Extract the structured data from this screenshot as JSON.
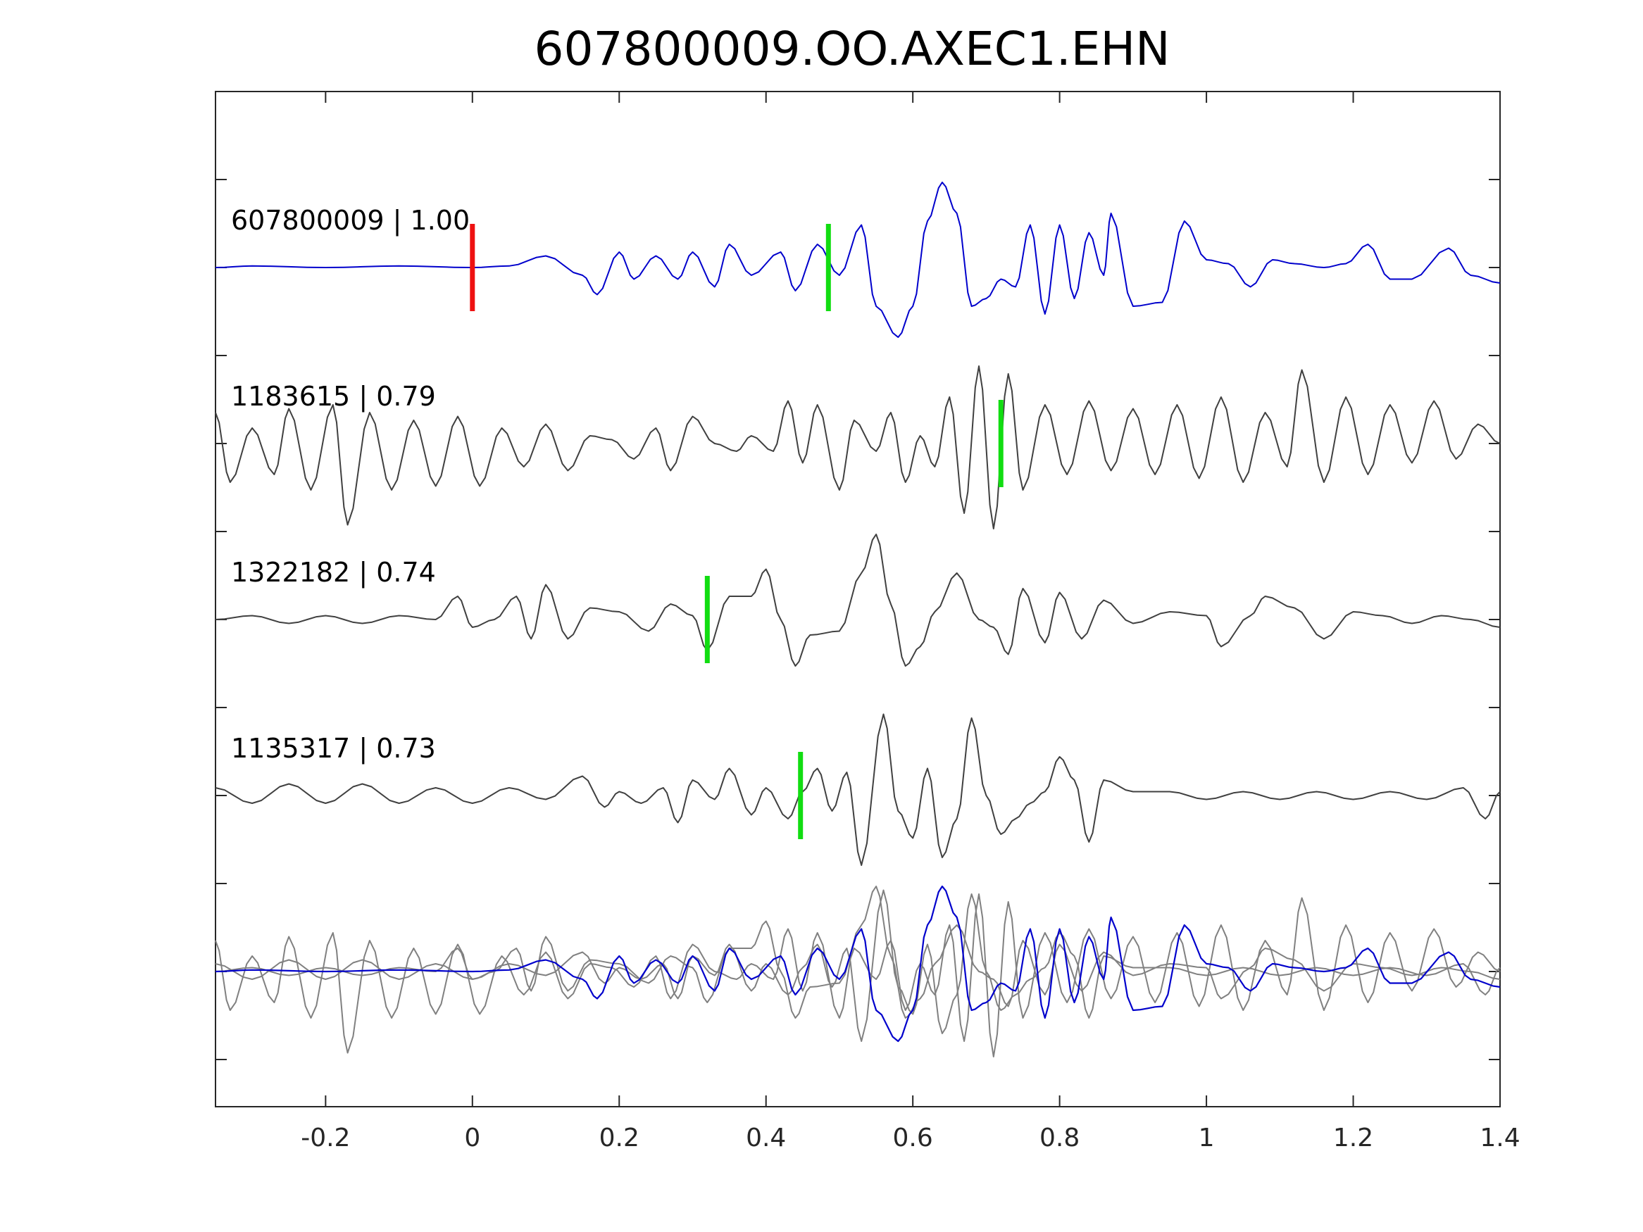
{
  "chart_data": {
    "type": "line",
    "title": "607800009.OO.AXEC1.EHN",
    "xlabel": "",
    "ylabel": "",
    "xlim": [
      -0.35,
      1.4
    ],
    "x_ticks": [
      -0.2,
      0,
      0.2,
      0.4,
      0.6,
      0.8,
      1,
      1.2,
      1.4
    ],
    "x_tick_labels": [
      "-0.2",
      "0",
      "0.2",
      "0.4",
      "0.6",
      "0.8",
      "1",
      "1.2",
      "1.4"
    ],
    "grid": false,
    "colors": {
      "template": "#0000cc",
      "match": "#404040",
      "overlay": "#808080",
      "reference_pick": "#ee1111",
      "match_pick": "#11dd11",
      "axes": "#262626"
    },
    "series": [
      {
        "label": "607800009 | 1.00",
        "color": "#0000cc",
        "baseline": 2,
        "pick_time": 0.0,
        "pick_color": "#ee1111",
        "pick2_time": 0.485,
        "points": [
          [
            -0.35,
            0
          ],
          [
            -0.3,
            0.02
          ],
          [
            -0.2,
            0
          ],
          [
            -0.1,
            0.02
          ],
          [
            0.0,
            0
          ],
          [
            0.05,
            0.02
          ],
          [
            0.1,
            0.15
          ],
          [
            0.15,
            -0.1
          ],
          [
            0.17,
            -0.35
          ],
          [
            0.2,
            0.2
          ],
          [
            0.22,
            -0.15
          ],
          [
            0.25,
            0.15
          ],
          [
            0.28,
            -0.15
          ],
          [
            0.3,
            0.2
          ],
          [
            0.33,
            -0.25
          ],
          [
            0.35,
            0.3
          ],
          [
            0.38,
            -0.1
          ],
          [
            0.42,
            0.2
          ],
          [
            0.44,
            -0.3
          ],
          [
            0.47,
            0.3
          ],
          [
            0.5,
            -0.1
          ],
          [
            0.53,
            0.55
          ],
          [
            0.55,
            -0.5
          ],
          [
            0.58,
            -0.9
          ],
          [
            0.6,
            -0.5
          ],
          [
            0.62,
            0.6
          ],
          [
            0.64,
            1.1
          ],
          [
            0.66,
            0.7
          ],
          [
            0.68,
            -0.5
          ],
          [
            0.7,
            -0.4
          ],
          [
            0.72,
            -0.15
          ],
          [
            0.74,
            -0.25
          ],
          [
            0.76,
            0.55
          ],
          [
            0.78,
            -0.6
          ],
          [
            0.8,
            0.55
          ],
          [
            0.82,
            -0.4
          ],
          [
            0.84,
            0.45
          ],
          [
            0.86,
            -0.1
          ],
          [
            0.87,
            0.7
          ],
          [
            0.9,
            -0.5
          ],
          [
            0.94,
            -0.45
          ],
          [
            0.97,
            0.6
          ],
          [
            1.0,
            0.1
          ],
          [
            1.03,
            0.05
          ],
          [
            1.06,
            -0.25
          ],
          [
            1.09,
            0.1
          ],
          [
            1.12,
            0.05
          ],
          [
            1.16,
            0.0
          ],
          [
            1.19,
            0.05
          ],
          [
            1.22,
            0.3
          ],
          [
            1.25,
            -0.15
          ],
          [
            1.28,
            -0.15
          ],
          [
            1.33,
            0.25
          ],
          [
            1.36,
            -0.1
          ],
          [
            1.4,
            -0.2
          ]
        ]
      },
      {
        "label": "1183615 | 0.79",
        "color": "#404040",
        "baseline": 4,
        "pick_time": 0.72,
        "pick_color": "#11dd11",
        "points": [
          [
            -0.35,
            0.4
          ],
          [
            -0.33,
            -0.5
          ],
          [
            -0.3,
            0.2
          ],
          [
            -0.27,
            -0.4
          ],
          [
            -0.25,
            0.45
          ],
          [
            -0.22,
            -0.6
          ],
          [
            -0.19,
            0.5
          ],
          [
            -0.17,
            -1.05
          ],
          [
            -0.14,
            0.4
          ],
          [
            -0.11,
            -0.6
          ],
          [
            -0.08,
            0.3
          ],
          [
            -0.05,
            -0.55
          ],
          [
            -0.02,
            0.35
          ],
          [
            0.01,
            -0.55
          ],
          [
            0.04,
            0.2
          ],
          [
            0.07,
            -0.3
          ],
          [
            0.1,
            0.25
          ],
          [
            0.13,
            -0.35
          ],
          [
            0.16,
            0.1
          ],
          [
            0.19,
            0.05
          ],
          [
            0.22,
            -0.2
          ],
          [
            0.25,
            0.2
          ],
          [
            0.27,
            -0.35
          ],
          [
            0.3,
            0.35
          ],
          [
            0.33,
            0.0
          ],
          [
            0.36,
            -0.1
          ],
          [
            0.38,
            0.1
          ],
          [
            0.41,
            -0.1
          ],
          [
            0.43,
            0.55
          ],
          [
            0.45,
            -0.25
          ],
          [
            0.47,
            0.5
          ],
          [
            0.5,
            -0.6
          ],
          [
            0.52,
            0.3
          ],
          [
            0.55,
            -0.1
          ],
          [
            0.57,
            0.4
          ],
          [
            0.59,
            -0.5
          ],
          [
            0.61,
            0.1
          ],
          [
            0.63,
            -0.3
          ],
          [
            0.65,
            0.6
          ],
          [
            0.67,
            -0.9
          ],
          [
            0.69,
            1.0
          ],
          [
            0.71,
            -1.1
          ],
          [
            0.73,
            0.9
          ],
          [
            0.75,
            -0.6
          ],
          [
            0.78,
            0.5
          ],
          [
            0.81,
            -0.4
          ],
          [
            0.84,
            0.55
          ],
          [
            0.87,
            -0.35
          ],
          [
            0.9,
            0.45
          ],
          [
            0.93,
            -0.4
          ],
          [
            0.96,
            0.5
          ],
          [
            0.99,
            -0.45
          ],
          [
            1.02,
            0.6
          ],
          [
            1.05,
            -0.5
          ],
          [
            1.08,
            0.4
          ],
          [
            1.11,
            -0.3
          ],
          [
            1.13,
            0.95
          ],
          [
            1.16,
            -0.5
          ],
          [
            1.19,
            0.6
          ],
          [
            1.22,
            -0.4
          ],
          [
            1.25,
            0.5
          ],
          [
            1.28,
            -0.25
          ],
          [
            1.31,
            0.55
          ],
          [
            1.34,
            -0.2
          ],
          [
            1.37,
            0.25
          ],
          [
            1.4,
            0.0
          ]
        ]
      },
      {
        "label": "1322182 | 0.74",
        "color": "#404040",
        "baseline": 6,
        "pick_time": 0.32,
        "pick_color": "#11dd11",
        "points": [
          [
            -0.35,
            0
          ],
          [
            -0.3,
            0.05
          ],
          [
            -0.25,
            -0.05
          ],
          [
            -0.2,
            0.05
          ],
          [
            -0.15,
            -0.05
          ],
          [
            -0.1,
            0.05
          ],
          [
            -0.05,
            0.0
          ],
          [
            -0.02,
            0.3
          ],
          [
            0.0,
            -0.1
          ],
          [
            0.03,
            0.0
          ],
          [
            0.06,
            0.3
          ],
          [
            0.08,
            -0.25
          ],
          [
            0.1,
            0.45
          ],
          [
            0.13,
            -0.25
          ],
          [
            0.16,
            0.15
          ],
          [
            0.2,
            0.1
          ],
          [
            0.24,
            -0.15
          ],
          [
            0.27,
            0.2
          ],
          [
            0.3,
            0.05
          ],
          [
            0.32,
            -0.4
          ],
          [
            0.35,
            0.3
          ],
          [
            0.38,
            0.3
          ],
          [
            0.4,
            0.65
          ],
          [
            0.42,
            0.0
          ],
          [
            0.44,
            -0.6
          ],
          [
            0.46,
            -0.2
          ],
          [
            0.5,
            -0.15
          ],
          [
            0.53,
            0.6
          ],
          [
            0.55,
            1.1
          ],
          [
            0.57,
            0.2
          ],
          [
            0.59,
            -0.6
          ],
          [
            0.61,
            -0.35
          ],
          [
            0.63,
            0.1
          ],
          [
            0.66,
            0.6
          ],
          [
            0.69,
            0.0
          ],
          [
            0.71,
            -0.1
          ],
          [
            0.73,
            -0.45
          ],
          [
            0.75,
            0.4
          ],
          [
            0.78,
            -0.3
          ],
          [
            0.8,
            0.35
          ],
          [
            0.83,
            -0.25
          ],
          [
            0.86,
            0.25
          ],
          [
            0.9,
            -0.05
          ],
          [
            0.95,
            0.1
          ],
          [
            1.0,
            0.05
          ],
          [
            1.02,
            -0.35
          ],
          [
            1.06,
            0.05
          ],
          [
            1.08,
            0.3
          ],
          [
            1.12,
            0.15
          ],
          [
            1.16,
            -0.25
          ],
          [
            1.2,
            0.1
          ],
          [
            1.24,
            0.05
          ],
          [
            1.28,
            -0.05
          ],
          [
            1.32,
            0.05
          ],
          [
            1.36,
            0.0
          ],
          [
            1.4,
            -0.1
          ]
        ]
      },
      {
        "label": "1135317 | 0.73",
        "color": "#404040",
        "baseline": 8,
        "pick_time": 0.447,
        "pick_color": "#11dd11",
        "points": [
          [
            -0.35,
            0.1
          ],
          [
            -0.3,
            -0.1
          ],
          [
            -0.25,
            0.15
          ],
          [
            -0.2,
            -0.1
          ],
          [
            -0.15,
            0.15
          ],
          [
            -0.1,
            -0.1
          ],
          [
            -0.05,
            0.1
          ],
          [
            0.0,
            -0.1
          ],
          [
            0.05,
            0.1
          ],
          [
            0.1,
            -0.05
          ],
          [
            0.15,
            0.25
          ],
          [
            0.18,
            -0.15
          ],
          [
            0.2,
            0.05
          ],
          [
            0.23,
            -0.1
          ],
          [
            0.26,
            0.1
          ],
          [
            0.28,
            -0.35
          ],
          [
            0.3,
            0.2
          ],
          [
            0.33,
            -0.05
          ],
          [
            0.35,
            0.35
          ],
          [
            0.38,
            -0.25
          ],
          [
            0.4,
            0.1
          ],
          [
            0.43,
            -0.3
          ],
          [
            0.45,
            0.05
          ],
          [
            0.47,
            0.35
          ],
          [
            0.49,
            -0.2
          ],
          [
            0.51,
            0.3
          ],
          [
            0.53,
            -0.9
          ],
          [
            0.56,
            1.05
          ],
          [
            0.58,
            -0.2
          ],
          [
            0.6,
            -0.55
          ],
          [
            0.62,
            0.35
          ],
          [
            0.64,
            -0.8
          ],
          [
            0.66,
            -0.3
          ],
          [
            0.68,
            1.0
          ],
          [
            0.7,
            0.0
          ],
          [
            0.72,
            -0.5
          ],
          [
            0.74,
            -0.3
          ],
          [
            0.76,
            -0.1
          ],
          [
            0.78,
            0.05
          ],
          [
            0.8,
            0.5
          ],
          [
            0.82,
            0.2
          ],
          [
            0.84,
            -0.6
          ],
          [
            0.86,
            0.2
          ],
          [
            0.9,
            0.05
          ],
          [
            0.95,
            0.05
          ],
          [
            1.0,
            -0.05
          ],
          [
            1.05,
            0.05
          ],
          [
            1.1,
            -0.05
          ],
          [
            1.15,
            0.05
          ],
          [
            1.2,
            -0.05
          ],
          [
            1.25,
            0.05
          ],
          [
            1.3,
            -0.05
          ],
          [
            1.35,
            0.1
          ],
          [
            1.38,
            -0.3
          ],
          [
            1.4,
            0.05
          ]
        ]
      }
    ],
    "overlay": {
      "baseline": 10,
      "color": "#808080",
      "description_series": [
        "607800009 | 1.00",
        "1183615 | 0.79",
        "1322182 | 0.74",
        "1135317 | 0.73"
      ]
    }
  }
}
